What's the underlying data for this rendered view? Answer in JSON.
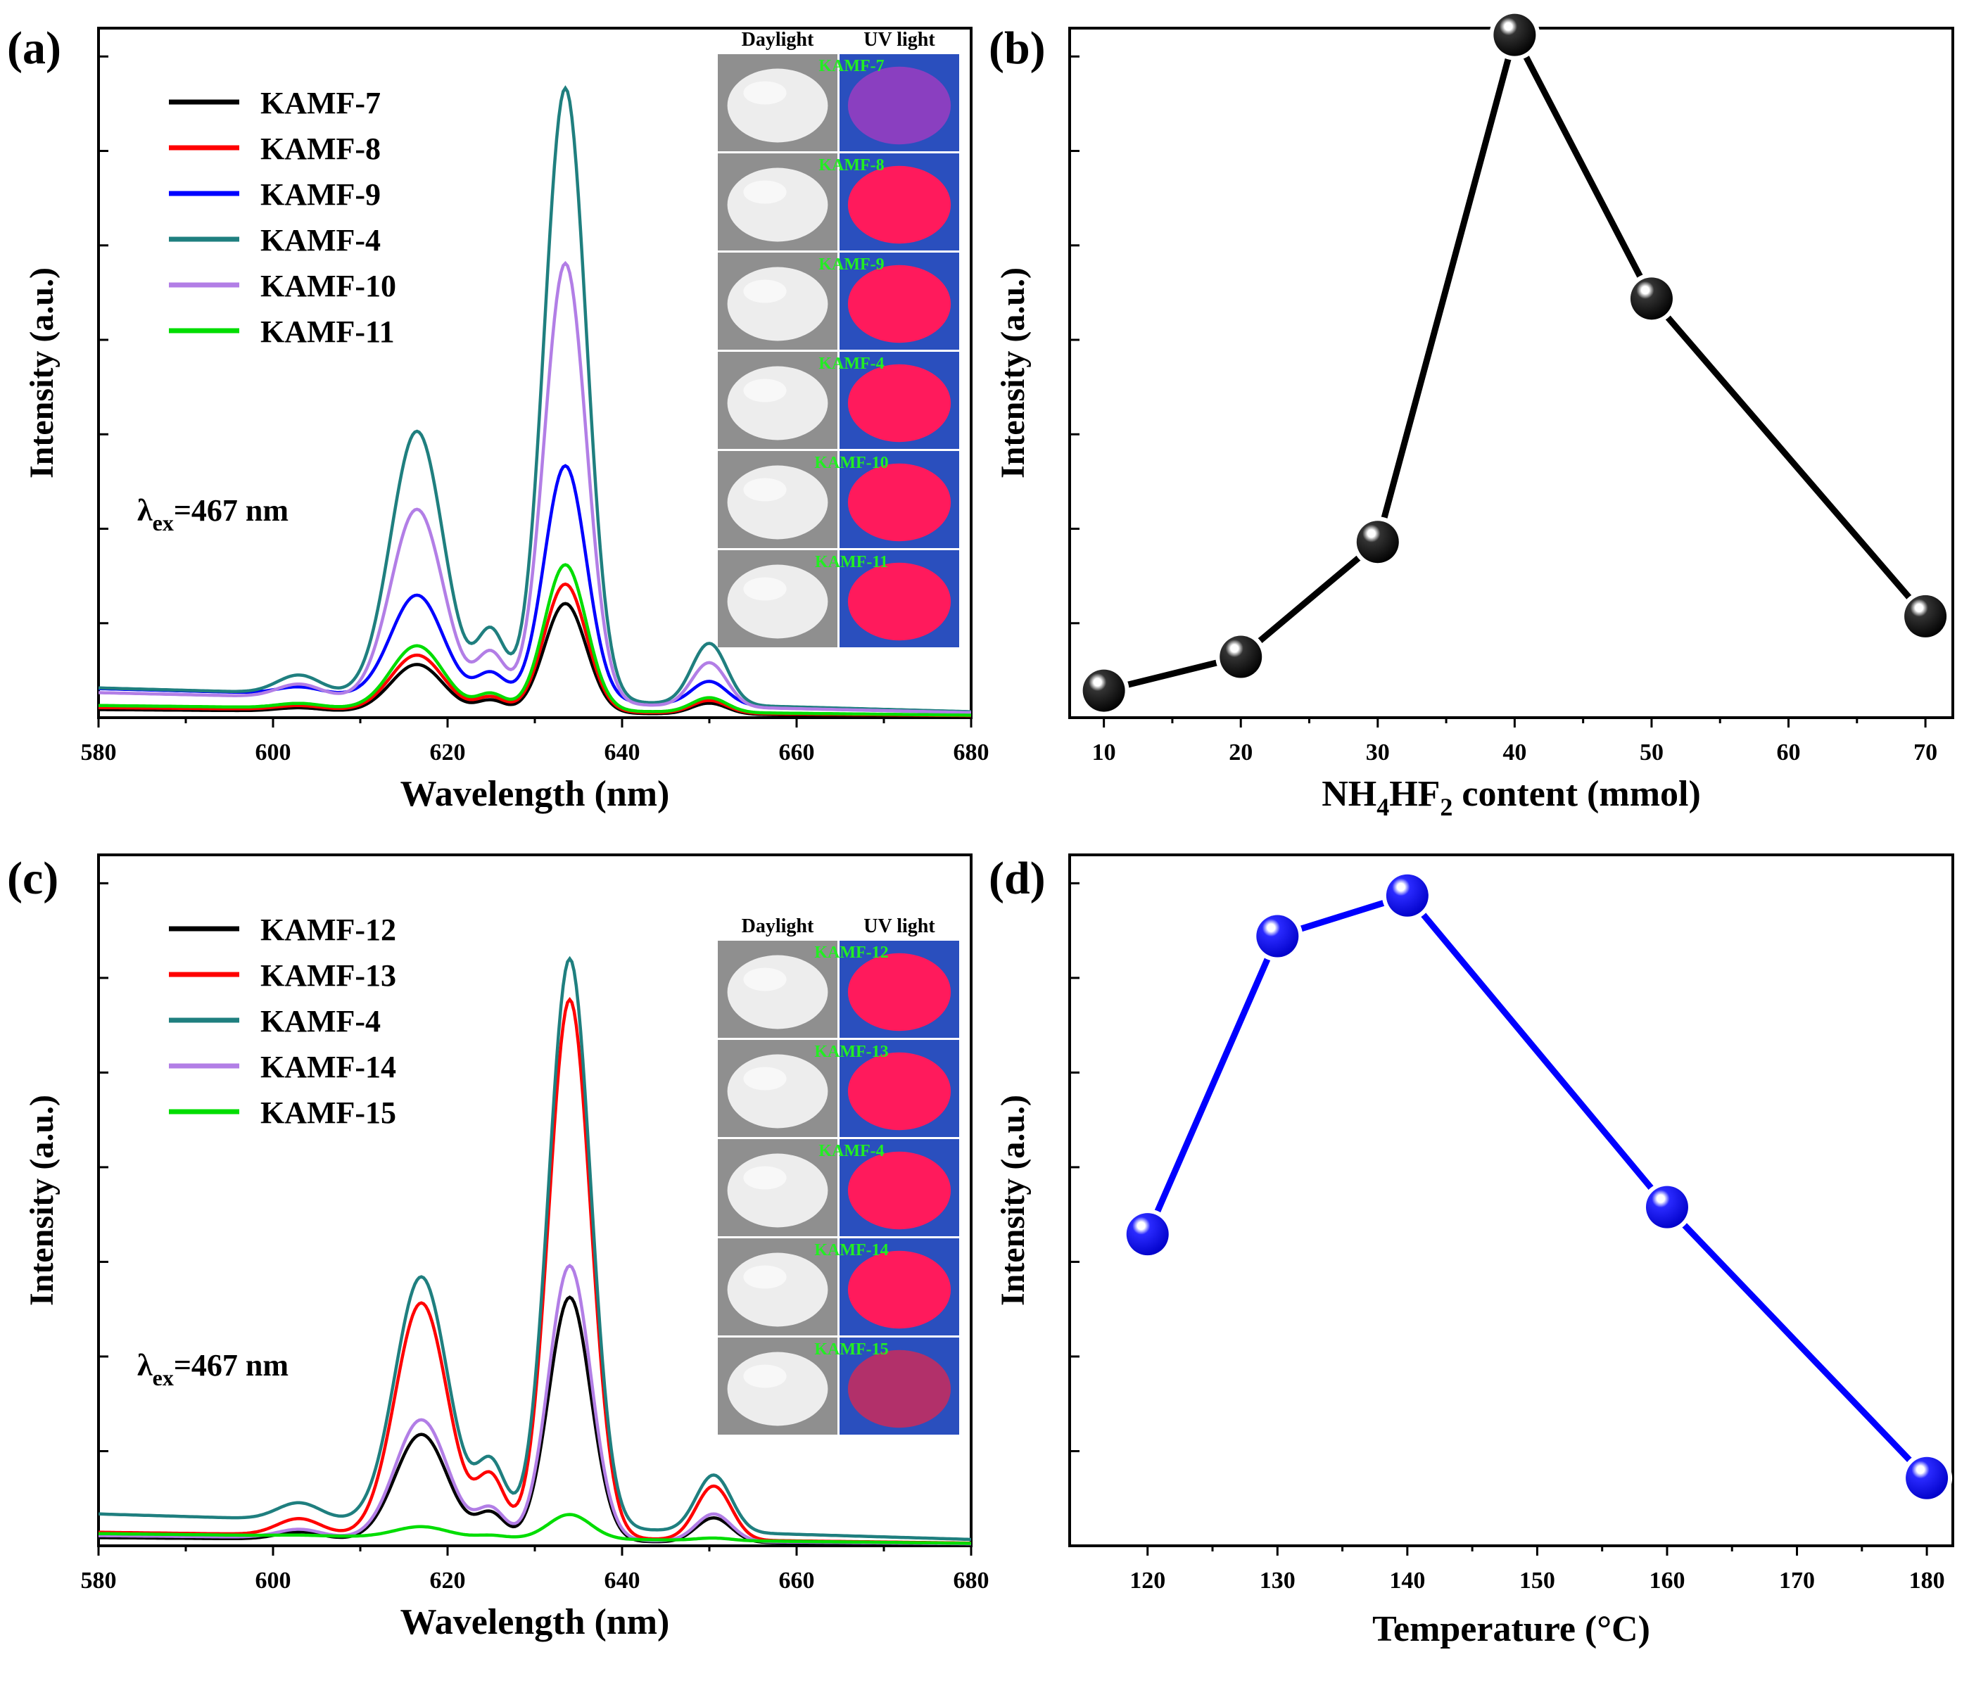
{
  "figure": {
    "panels": [
      "(a)",
      "(b)",
      "(c)",
      "(d)"
    ]
  },
  "chart_data": [
    {
      "type": "line",
      "panel_label": "(a)",
      "xlabel": "Wavelength (nm)",
      "ylabel": "Intensity (a.u.)",
      "xlim": [
        580,
        680
      ],
      "ylim": [
        0,
        102
      ],
      "xticks": [
        580,
        600,
        620,
        640,
        660,
        680
      ],
      "grid": false,
      "legend_position": "top-left",
      "annotation": {
        "lambda": "λ",
        "sub": "ex",
        "rest": "=467 nm"
      },
      "inset": {
        "headers": [
          "Daylight",
          "UV light"
        ],
        "labels": [
          "KAMF-7",
          "KAMF-8",
          "KAMF-9",
          "KAMF-4",
          "KAMF-10",
          "KAMF-11"
        ]
      },
      "series": [
        {
          "name": "KAMF-7",
          "color": "#000000",
          "baseline": 1.2,
          "scale": 0.54,
          "peaks": [
            [
              616.5,
              13,
              3.0
            ],
            [
              633.5,
              30,
              2.4
            ],
            [
              650,
              3,
              2.0
            ]
          ]
        },
        {
          "name": "KAMF-8",
          "color": "#ff0000",
          "baseline": 1.5,
          "scale": 0.63,
          "peaks": [
            [
              616.5,
              13,
              3.0
            ],
            [
              633.5,
              30,
              2.4
            ],
            [
              650,
              3,
              2.0
            ]
          ]
        },
        {
          "name": "KAMF-9",
          "color": "#0000ff",
          "baseline": 4.3,
          "scale": 1.16,
          "peaks": [
            [
              616.5,
              13,
              3.0
            ],
            [
              633.5,
              30,
              2.4
            ],
            [
              650,
              3,
              2.0
            ]
          ]
        },
        {
          "name": "KAMF-4",
          "color": "#1f7f7f",
          "baseline": 4.4,
          "scale": 3.02,
          "peaks": [
            [
              616.5,
              13,
              3.0
            ],
            [
              633.5,
              30,
              2.4
            ],
            [
              650,
              3,
              2.0
            ]
          ]
        },
        {
          "name": "KAMF-10",
          "color": "#b27ee6",
          "baseline": 3.7,
          "scale": 2.17,
          "peaks": [
            [
              616.5,
              13,
              3.0
            ],
            [
              633.5,
              30,
              2.4
            ],
            [
              650,
              3,
              2.0
            ]
          ]
        },
        {
          "name": "KAMF-11",
          "color": "#00dd00",
          "baseline": 1.8,
          "scale": 0.72,
          "peaks": [
            [
              616.5,
              13,
              3.0
            ],
            [
              633.5,
              30,
              2.4
            ],
            [
              650,
              3,
              2.0
            ]
          ]
        }
      ]
    },
    {
      "type": "line",
      "panel_label": "(b)",
      "xlabel_parts": [
        "NH",
        "4",
        "HF",
        "2",
        " content (mmol)"
      ],
      "ylabel": "Intensity (a.u.)",
      "x_positions": [
        10,
        20,
        30,
        40,
        50,
        60,
        70
      ],
      "xticks": [
        "10",
        "20",
        "30",
        "40",
        "50",
        "60",
        "70"
      ],
      "xlim": [
        7.5,
        72
      ],
      "ylim": [
        0,
        102
      ],
      "grid": false,
      "series": [
        {
          "name": "",
          "color": "#000000",
          "x": [
            10,
            20,
            30,
            40,
            50,
            70
          ],
          "y": [
            4,
            9,
            26,
            101,
            62,
            15
          ]
        }
      ]
    },
    {
      "type": "line",
      "panel_label": "(c)",
      "xlabel": "Wavelength (nm)",
      "ylabel": "Intensity (a.u.)",
      "xlim": [
        580,
        680
      ],
      "ylim": [
        0,
        102
      ],
      "xticks": [
        580,
        600,
        620,
        640,
        660,
        680
      ],
      "grid": false,
      "legend_position": "top-left",
      "annotation": {
        "lambda": "λ",
        "sub": "ex",
        "rest": "=467 nm"
      },
      "inset": {
        "headers": [
          "Daylight",
          "UV light"
        ],
        "labels": [
          "KAMF-12",
          "KAMF-13",
          "KAMF-4",
          "KAMF-14",
          "KAMF-15"
        ]
      },
      "series": [
        {
          "name": "KAMF-12",
          "color": "#000000",
          "baseline": 1.2,
          "scale": 1.2,
          "peaks": [
            [
              617,
              13,
              3.0
            ],
            [
              634,
              30,
              2.4
            ],
            [
              650.5,
              3,
              2.0
            ]
          ]
        },
        {
          "name": "KAMF-13",
          "color": "#ff0000",
          "baseline": 2.0,
          "scale": 2.65,
          "peaks": [
            [
              617,
              13,
              3.0
            ],
            [
              634,
              30,
              2.4
            ],
            [
              650.5,
              3,
              2.0
            ]
          ]
        },
        {
          "name": "KAMF-4",
          "color": "#1f7f7f",
          "baseline": 4.7,
          "scale": 2.8,
          "peaks": [
            [
              617,
              13,
              3.0
            ],
            [
              634,
              30,
              2.4
            ],
            [
              650.5,
              3,
              2.0
            ]
          ]
        },
        {
          "name": "KAMF-14",
          "color": "#b27ee6",
          "baseline": 1.5,
          "scale": 1.35,
          "peaks": [
            [
              617,
              13,
              3.0
            ],
            [
              634,
              30,
              2.4
            ],
            [
              650.5,
              3,
              2.0
            ]
          ]
        },
        {
          "name": "KAMF-15",
          "color": "#00dd00",
          "baseline": 1.8,
          "scale": 0.12,
          "peaks": [
            [
              617,
              13,
              3.0
            ],
            [
              634,
              30,
              2.4
            ],
            [
              650.5,
              3,
              2.0
            ]
          ]
        }
      ]
    },
    {
      "type": "line",
      "panel_label": "(d)",
      "xlabel": "Temperature (°C)",
      "ylabel": "Intensity (a.u.)",
      "xlim": [
        114,
        182
      ],
      "ylim": [
        0,
        102
      ],
      "xticks": [
        120,
        130,
        140,
        150,
        160,
        170,
        180
      ],
      "grid": false,
      "series": [
        {
          "name": "",
          "color": "#0000ff",
          "x": [
            120,
            130,
            140,
            160,
            180
          ],
          "y": [
            46,
            90,
            96,
            50,
            10
          ]
        }
      ]
    }
  ]
}
